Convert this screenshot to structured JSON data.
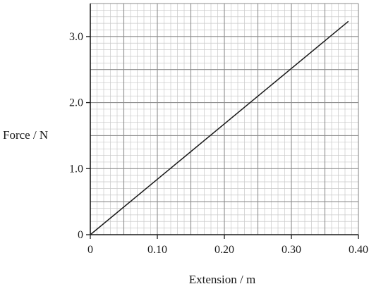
{
  "chart_data": {
    "type": "line",
    "title": "",
    "xlabel": "Extension / m",
    "ylabel": "Force / N",
    "xlim": [
      0,
      0.4
    ],
    "ylim": [
      0,
      3.5
    ],
    "x_ticks": [
      0,
      0.1,
      0.2,
      0.3,
      0.4
    ],
    "x_tick_labels": [
      "0",
      "0.10",
      "0.20",
      "0.30",
      "0.40"
    ],
    "y_ticks": [
      0,
      1.0,
      2.0,
      3.0
    ],
    "y_tick_labels": [
      "0",
      "1.0",
      "2.0",
      "3.0"
    ],
    "grid": true,
    "grid_style": "graph paper (major every 0.05 m / 0.5 N, minor every 0.01 m / 0.1 N)",
    "series": [
      {
        "x": [
          0,
          0.385
        ],
        "y": [
          0,
          3.23
        ],
        "color": "#1a1a1a"
      }
    ]
  }
}
